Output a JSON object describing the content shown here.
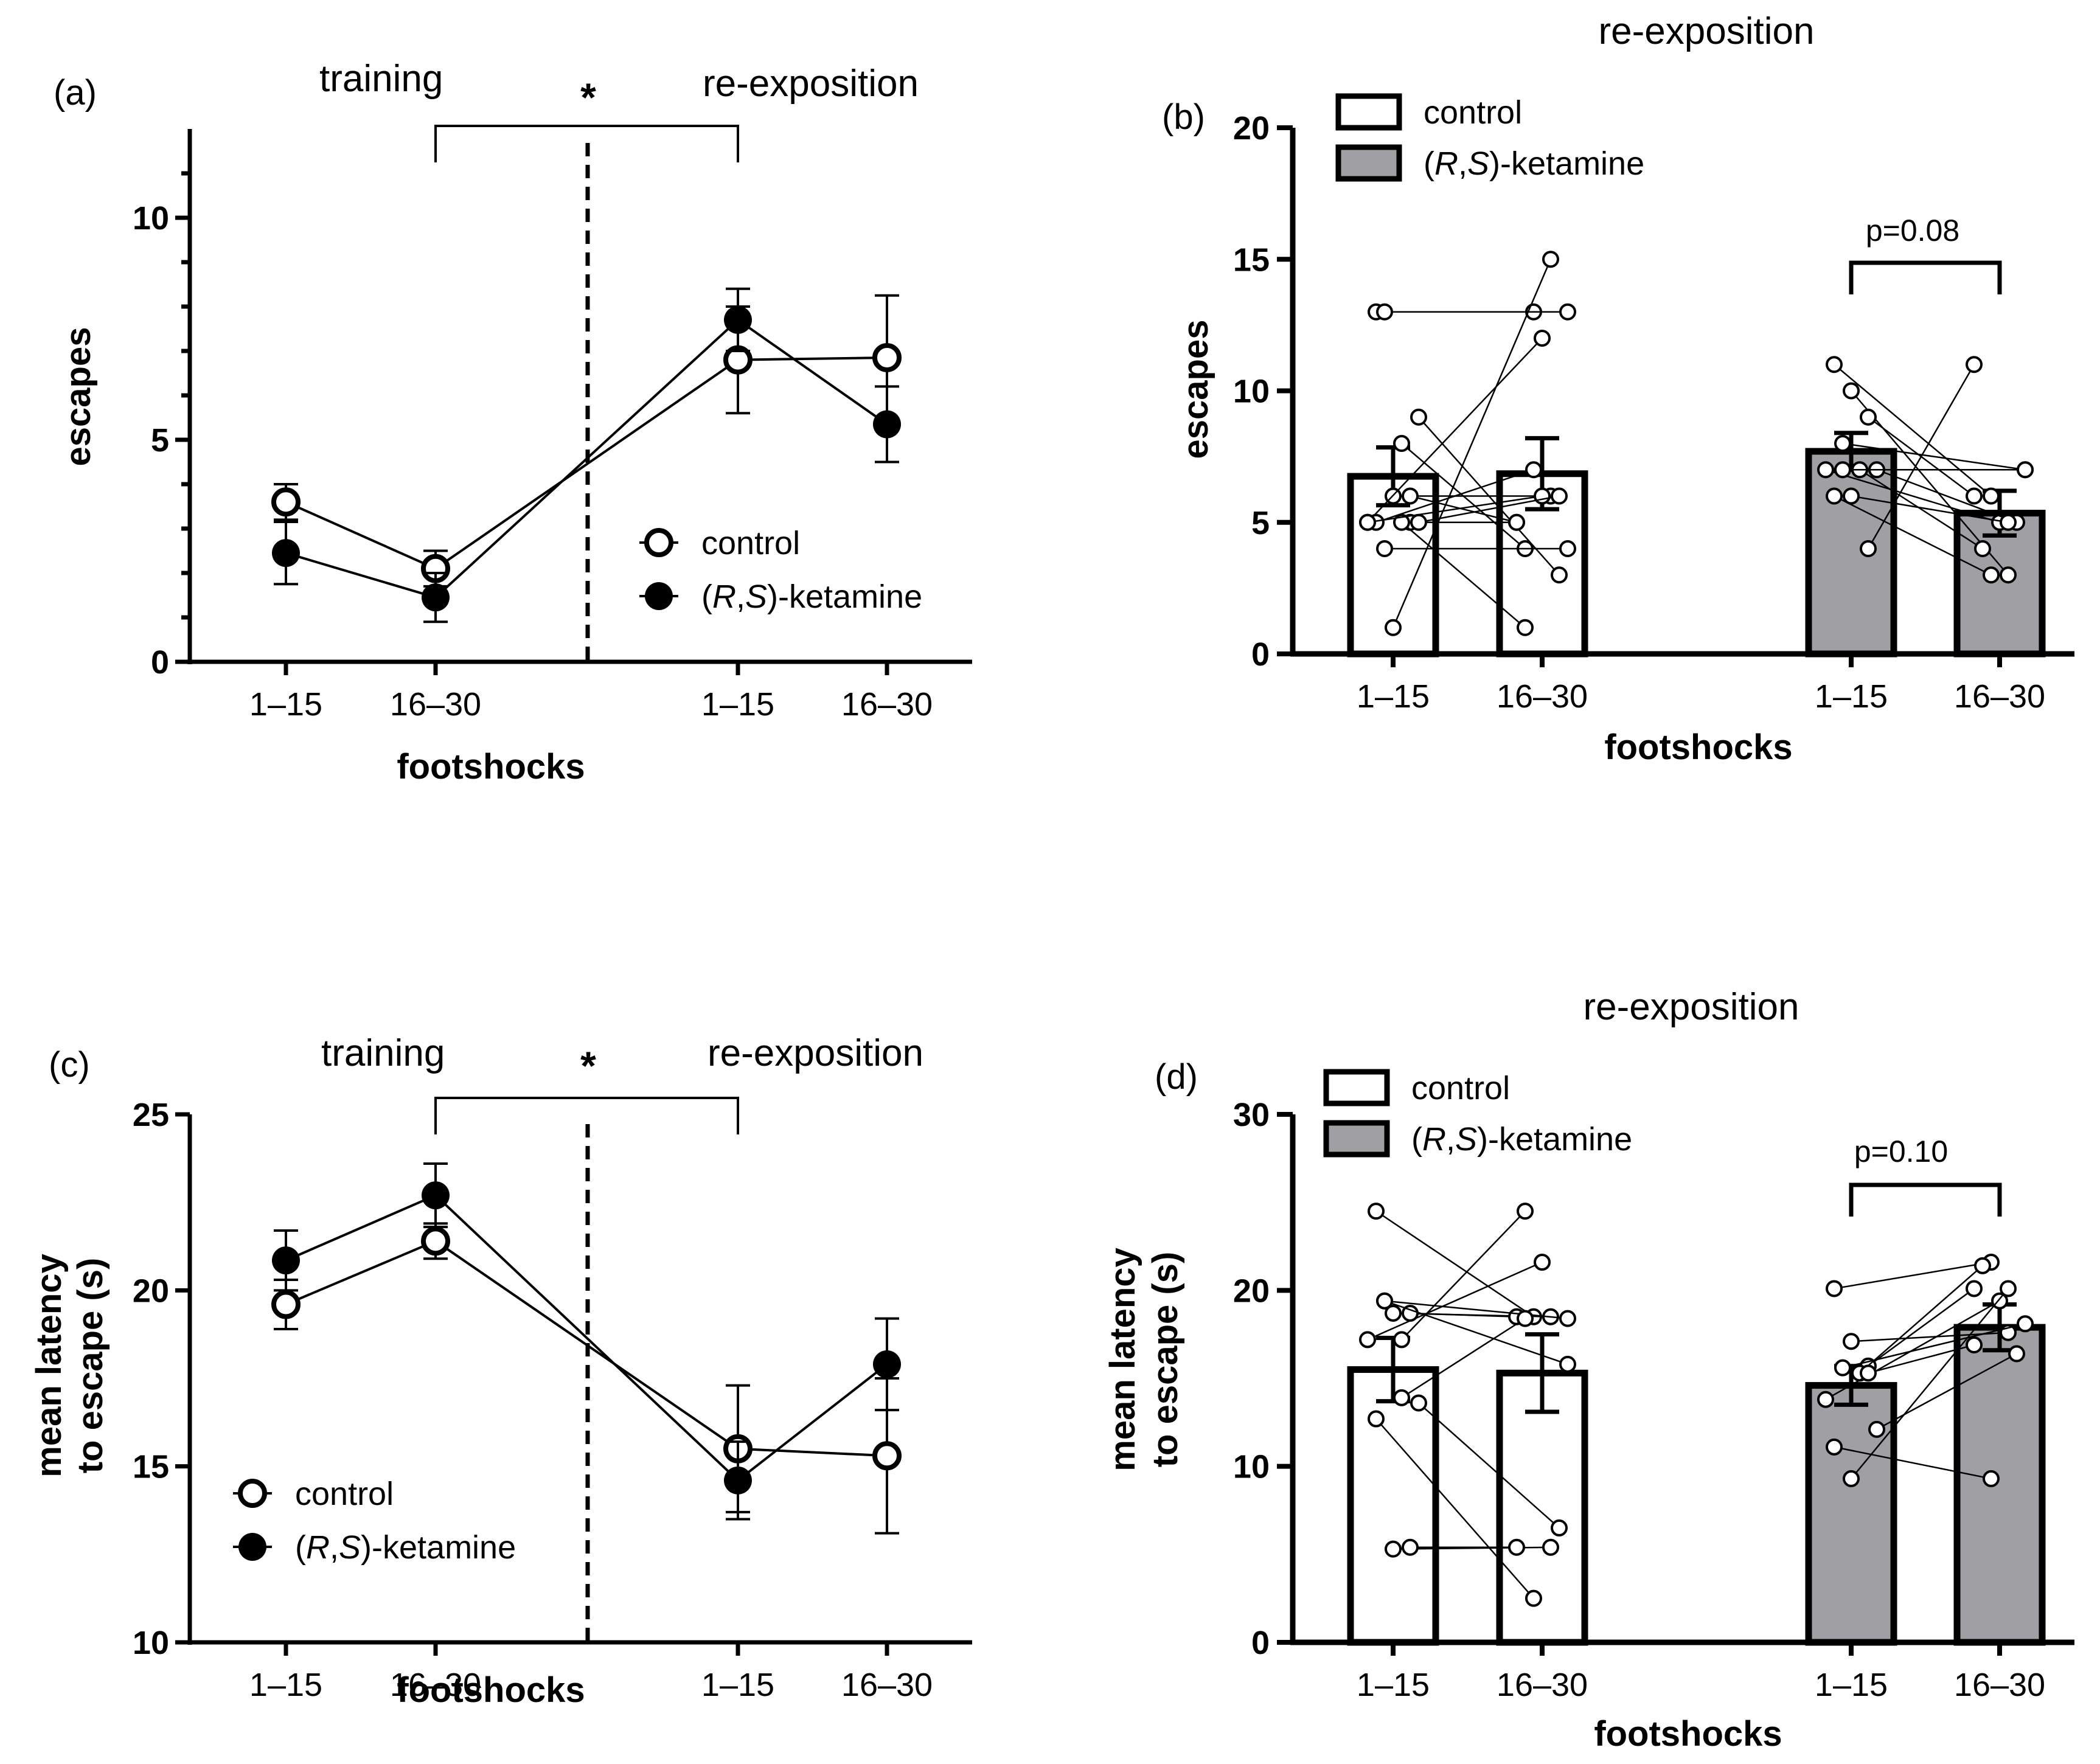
{
  "chart_data": [
    {
      "id": "a",
      "type": "line",
      "panel_label": "(a)",
      "sections": [
        "training",
        "re-exposition"
      ],
      "significance": "*",
      "xlabel": "footshocks",
      "ylabel": "escapes",
      "categories": [
        "1–15",
        "16–30",
        "1–15",
        "16–30"
      ],
      "ylim": [
        0,
        12
      ],
      "yticks": [
        0,
        5,
        10
      ],
      "yminor": [
        1,
        2,
        3,
        4,
        6,
        7,
        8,
        9,
        11
      ],
      "series": [
        {
          "name": "control",
          "marker": "open",
          "values": [
            3.6,
            2.1,
            6.8,
            6.85
          ],
          "sem": [
            0.4,
            0.4,
            1.2,
            1.4
          ]
        },
        {
          "name": "(R,S)-ketamine",
          "name_italic": [
            "R",
            "S"
          ],
          "marker": "filled",
          "values": [
            2.45,
            1.45,
            7.7,
            5.35
          ],
          "sem": [
            0.7,
            0.55,
            0.7,
            0.85
          ]
        }
      ],
      "legend": "center-right"
    },
    {
      "id": "b",
      "type": "bar",
      "panel_label": "(b)",
      "title": "re-exposition",
      "xlabel": "footshocks",
      "ylabel": "escapes",
      "categories": [
        "1–15",
        "16–30",
        "1–15",
        "16–30"
      ],
      "groups": [
        "control",
        "control",
        "(R,S)-ketamine",
        "(R,S)-ketamine"
      ],
      "values": [
        6.75,
        6.85,
        7.7,
        5.35
      ],
      "sem": [
        1.1,
        1.35,
        0.7,
        0.85
      ],
      "ylim": [
        0,
        20
      ],
      "yticks": [
        0,
        5,
        10,
        15,
        20
      ],
      "annotation": "p=0.08",
      "pairs": [
        [
          [
            [
              13,
              13
            ],
            [
              6,
              6
            ],
            [
              5,
              5
            ],
            [
              13,
              13
            ],
            [
              8,
              4
            ],
            [
              5,
              12
            ],
            [
              9,
              3
            ],
            [
              5,
              7
            ],
            [
              1,
              15
            ],
            [
              6,
              5
            ],
            [
              4,
              4
            ],
            [
              5,
              1
            ],
            [
              5,
              6
            ],
            [
              5,
              6
            ]
          ]
        ],
        [
          [
            [
              11,
              6
            ],
            [
              10,
              3
            ],
            [
              9,
              6
            ],
            [
              8,
              7
            ],
            [
              7,
              4
            ],
            [
              7,
              5
            ],
            [
              7,
              5
            ],
            [
              6,
              3
            ],
            [
              6,
              5
            ],
            [
              4,
              11
            ],
            [
              7,
              7
            ]
          ]
        ]
      ],
      "legend_items": [
        "control",
        "(R,S)-ketamine"
      ],
      "legend": "top-left"
    },
    {
      "id": "c",
      "type": "line",
      "panel_label": "(c)",
      "sections": [
        "training",
        "re-exposition"
      ],
      "significance": "*",
      "xlabel": "footshocks",
      "ylabel": [
        "mean latency",
        "to escape (s)"
      ],
      "categories": [
        "1–15",
        "16–30",
        "1–15",
        "16–30"
      ],
      "ylim": [
        10,
        25
      ],
      "yticks": [
        10,
        15,
        20,
        25
      ],
      "series": [
        {
          "name": "control",
          "marker": "open",
          "values": [
            19.6,
            21.4,
            15.5,
            15.3
          ],
          "sem": [
            0.7,
            0.5,
            1.8,
            2.2
          ]
        },
        {
          "name": "(R,S)-ketamine",
          "marker": "filled",
          "values": [
            20.85,
            22.7,
            14.6,
            17.9
          ],
          "sem": [
            0.85,
            0.9,
            1.1,
            1.3
          ]
        }
      ],
      "legend": "bottom-left"
    },
    {
      "id": "d",
      "type": "bar",
      "panel_label": "(d)",
      "title": "re-exposition",
      "xlabel": "footshocks",
      "ylabel": [
        "mean latency",
        "to escape (s)"
      ],
      "categories": [
        "1–15",
        "16–30",
        "1–15",
        "16–30"
      ],
      "groups": [
        "control",
        "control",
        "(R,S)-ketamine",
        "(R,S)-ketamine"
      ],
      "values": [
        15.5,
        15.3,
        14.6,
        17.9
      ],
      "sem": [
        1.8,
        2.2,
        1.1,
        1.3
      ],
      "ylim": [
        0,
        30
      ],
      "yticks": [
        0,
        10,
        20,
        30
      ],
      "annotation": "p=0.10",
      "pairs": [
        [
          [
            [
              24.5,
              18.5
            ],
            [
              18.7,
              18.5
            ],
            [
              18.7,
              18.5
            ],
            [
              19.4,
              18.4
            ],
            [
              17.2,
              24.5
            ],
            [
              17.2,
              21.6
            ],
            [
              13.6,
              6.5
            ],
            [
              12.7,
              2.5
            ],
            [
              5.3,
              5.4
            ],
            [
              5.4,
              5.4
            ],
            [
              19.4,
              15.8
            ],
            [
              13.9,
              18.4
            ]
          ]
        ],
        [
          [
            [
              20.1,
              21.6
            ],
            [
              17.1,
              17.6
            ],
            [
              15.7,
              20.1
            ],
            [
              15.6,
              18.1
            ],
            [
              15.3,
              21.4
            ],
            [
              13.8,
              19.4
            ],
            [
              12.1,
              16.4
            ],
            [
              11.1,
              9.3
            ],
            [
              9.3,
              20.1
            ],
            [
              15.3,
              16.9
            ]
          ]
        ]
      ],
      "legend_items": [
        "control",
        "(R,S)-ketamine"
      ],
      "legend": "top-left"
    }
  ]
}
